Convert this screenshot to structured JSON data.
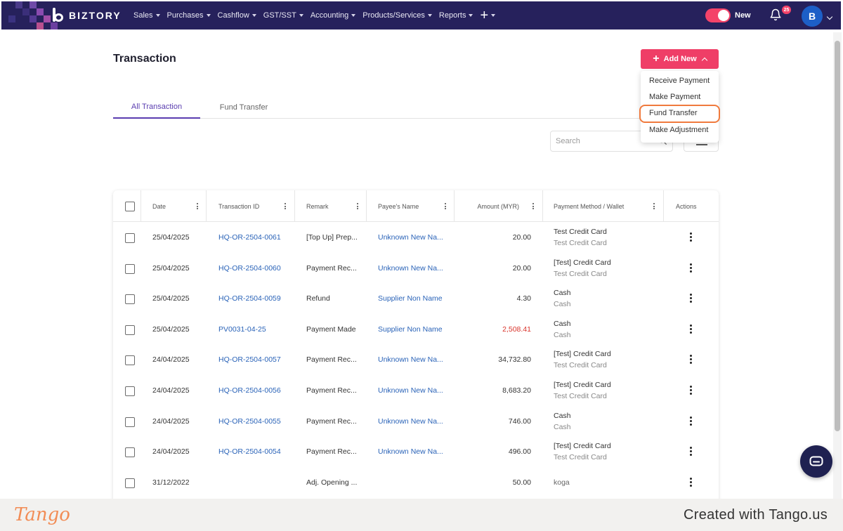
{
  "app": {
    "logo_text": "BIZTORY"
  },
  "nav": {
    "items": [
      "Sales",
      "Purchases",
      "Cashflow",
      "GST/SST",
      "Accounting",
      "Products/Services",
      "Reports"
    ],
    "plus": "+"
  },
  "header": {
    "toggle_label": "New",
    "notification_count": "25",
    "avatar_initial": "B"
  },
  "page": {
    "title": "Transaction"
  },
  "add_new": {
    "label": "Add New",
    "menu": [
      "Receive Payment",
      "Make Payment",
      "Fund Transfer",
      "Make Adjustment"
    ],
    "highlighted": "Fund Transfer"
  },
  "tabs": [
    "All Transaction",
    "Fund Transfer"
  ],
  "search": {
    "placeholder": "Search"
  },
  "table": {
    "columns": [
      "Date",
      "Transaction ID",
      "Remark",
      "Payee's Name",
      "Amount (MYR)",
      "Payment Method / Wallet",
      "Actions"
    ],
    "rows": [
      {
        "date": "25/04/2025",
        "id": "HQ-OR-2504-0061",
        "remark": "[Top Up] Prep...",
        "payee": "Unknown New Na...",
        "amount": "20.00",
        "method": "Test Credit Card",
        "wallet": "Test Credit Card",
        "negative": false
      },
      {
        "date": "25/04/2025",
        "id": "HQ-OR-2504-0060",
        "remark": "Payment Rec...",
        "payee": "Unknown New Na...",
        "amount": "20.00",
        "method": "[Test] Credit Card",
        "wallet": "Test Credit Card",
        "negative": false
      },
      {
        "date": "25/04/2025",
        "id": "HQ-OR-2504-0059",
        "remark": "Refund",
        "payee": "Supplier Non Name",
        "amount": "4.30",
        "method": "Cash",
        "wallet": "Cash",
        "negative": false
      },
      {
        "date": "25/04/2025",
        "id": "PV0031-04-25",
        "remark": "Payment Made",
        "payee": "Supplier Non Name",
        "amount": "2,508.41",
        "method": "Cash",
        "wallet": "Cash",
        "negative": true
      },
      {
        "date": "24/04/2025",
        "id": "HQ-OR-2504-0057",
        "remark": "Payment Rec...",
        "payee": "Unknown New Na...",
        "amount": "34,732.80",
        "method": "[Test] Credit Card",
        "wallet": "Test Credit Card",
        "negative": false
      },
      {
        "date": "24/04/2025",
        "id": "HQ-OR-2504-0056",
        "remark": "Payment Rec...",
        "payee": "Unknown New Na...",
        "amount": "8,683.20",
        "method": "[Test] Credit Card",
        "wallet": "Test Credit Card",
        "negative": false
      },
      {
        "date": "24/04/2025",
        "id": "HQ-OR-2504-0055",
        "remark": "Payment Rec...",
        "payee": "Unknown New Na...",
        "amount": "746.00",
        "method": "Cash",
        "wallet": "Cash",
        "negative": false
      },
      {
        "date": "24/04/2025",
        "id": "HQ-OR-2504-0054",
        "remark": "Payment Rec...",
        "payee": "Unknown New Na...",
        "amount": "496.00",
        "method": "[Test] Credit Card",
        "wallet": "Test Credit Card",
        "negative": false
      },
      {
        "date": "31/12/2022",
        "id": "",
        "remark": "Adj. Opening ...",
        "payee": "",
        "amount": "50.00",
        "method": "koga",
        "wallet": "",
        "negative": false
      }
    ]
  },
  "footer": {
    "logo": "Tango",
    "credit": "Created with Tango.us"
  },
  "colors": {
    "nav_bg": "#26215c",
    "accent": "#ef3e67",
    "tab_active": "#5a3db0",
    "link": "#2a63b8",
    "negative": "#d9342b",
    "highlight": "#f07a3d"
  },
  "icons": [
    "bell-icon",
    "plus-icon",
    "chevron-up-icon",
    "search-icon",
    "filter-icon",
    "kebab-icon",
    "chat-icon"
  ]
}
